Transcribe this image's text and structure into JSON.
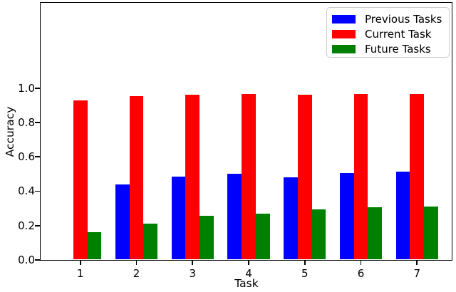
{
  "chart_data": {
    "type": "bar",
    "title": "",
    "xlabel": "Task",
    "ylabel": "Accuracy",
    "categories": [
      "1",
      "2",
      "3",
      "4",
      "5",
      "6",
      "7"
    ],
    "series": [
      {
        "name": "Previous Tasks",
        "color": "#0000ff",
        "values": [
          0,
          0.44,
          0.485,
          0.5,
          0.48,
          0.505,
          0.515
        ]
      },
      {
        "name": "Current Task",
        "color": "#ff0000",
        "values": [
          0.93,
          0.955,
          0.96,
          0.965,
          0.96,
          0.965,
          0.965
        ]
      },
      {
        "name": "Future Tasks",
        "color": "#008000",
        "values": [
          0.16,
          0.21,
          0.255,
          0.27,
          0.295,
          0.305,
          0.31
        ]
      }
    ],
    "ytick_labels": [
      "0.0",
      "0.2",
      "0.4",
      "0.6",
      "0.8",
      "1.0"
    ],
    "ytick_values": [
      0,
      0.2,
      0.4,
      0.6,
      0.8,
      1.0
    ],
    "ylim": [
      0,
      1.5
    ],
    "xlim_note": "ticks 1-7 centered, headroom above 1.0 for legend",
    "grid": false,
    "legend": {
      "position": "upper right"
    },
    "axis_color": "#000000",
    "background_color": "#ffffff"
  }
}
